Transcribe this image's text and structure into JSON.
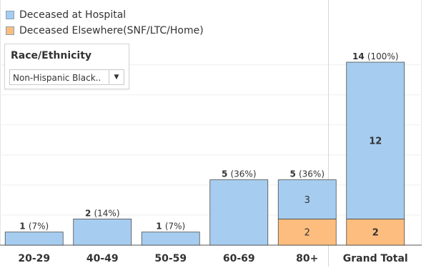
{
  "legend": {
    "items": [
      {
        "label": "Deceased at Hospital",
        "color": "#a6cdf0"
      },
      {
        "label": "Deceased Elsewhere(SNF/LTC/Home)",
        "color": "#fcbd7e"
      }
    ]
  },
  "filter": {
    "title": "Race/Ethnicity",
    "value": "Non-Hispanic Black..",
    "icon": "chevron-down-icon"
  },
  "chart_data": {
    "type": "bar",
    "stacked": true,
    "categories": [
      "20-29",
      "40-49",
      "50-59",
      "60-69",
      "80+",
      "Grand Total"
    ],
    "series": [
      {
        "name": "Deceased Elsewhere(SNF/LTC/Home)",
        "color": "#fcbd7e",
        "values": [
          0,
          0,
          0,
          0,
          2,
          2
        ]
      },
      {
        "name": "Deceased at Hospital",
        "color": "#a6cdf0",
        "values": [
          1,
          2,
          1,
          5,
          3,
          12
        ]
      }
    ],
    "segment_labels": [
      [
        null,
        null,
        null,
        null,
        "2",
        "2"
      ],
      [
        null,
        null,
        null,
        null,
        "3",
        "12"
      ]
    ],
    "top_labels": [
      {
        "count": "1",
        "pct": "(7%)"
      },
      {
        "count": "2",
        "pct": "(14%)"
      },
      {
        "count": "1",
        "pct": "(7%)"
      },
      {
        "count": "5",
        "pct": "(36%)"
      },
      {
        "count": "5",
        "pct": "(36%)"
      },
      {
        "count": "14",
        "pct": "(100%)"
      }
    ],
    "grid": true,
    "legend_position": "top-left"
  }
}
